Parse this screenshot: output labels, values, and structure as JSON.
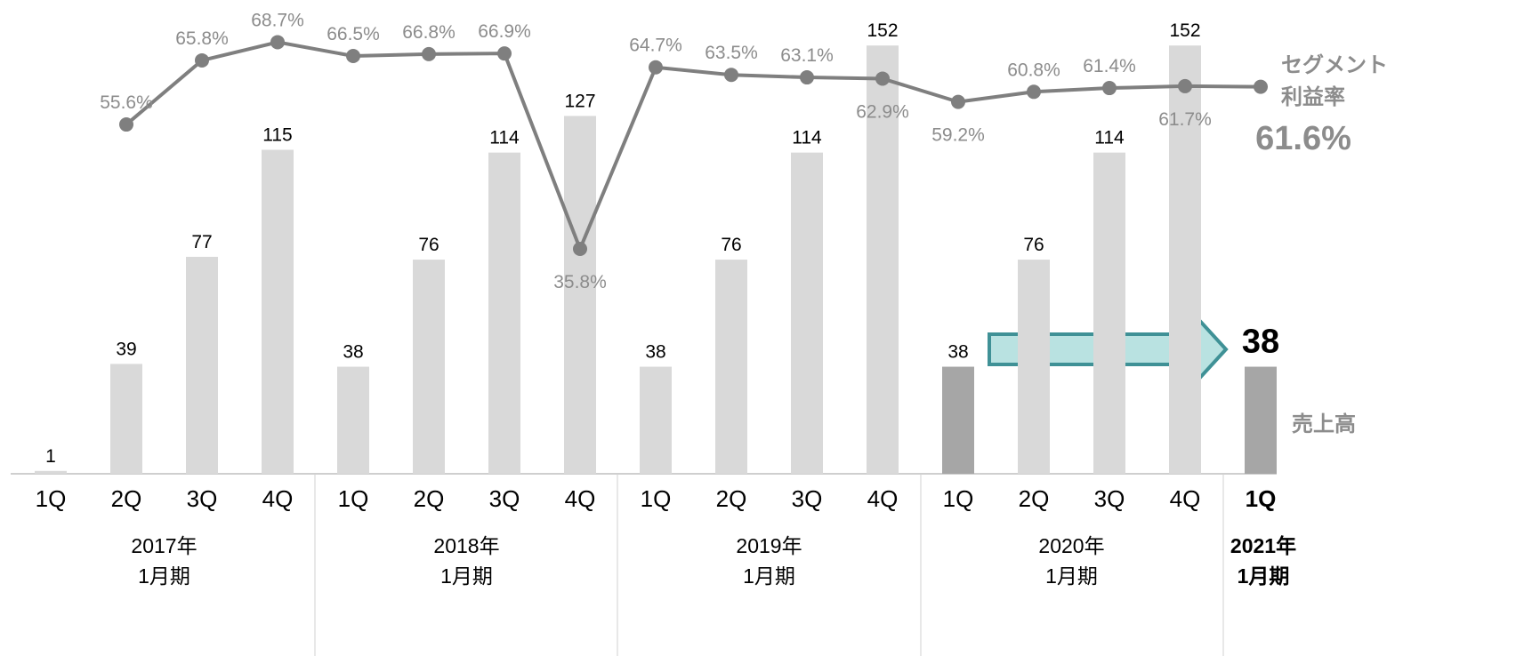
{
  "chart_data": {
    "type": "bar_line",
    "categories": [
      "1Q",
      "2Q",
      "3Q",
      "4Q",
      "1Q",
      "2Q",
      "3Q",
      "4Q",
      "1Q",
      "2Q",
      "3Q",
      "4Q",
      "1Q",
      "2Q",
      "3Q",
      "4Q",
      "1Q"
    ],
    "groups": [
      [
        "2017年",
        "1月期"
      ],
      [
        "2018年",
        "1月期"
      ],
      [
        "2019年",
        "1月期"
      ],
      [
        "2020年",
        "1月期"
      ],
      [
        "2021年",
        "1月期"
      ]
    ],
    "series": [
      {
        "name": "売上高",
        "type": "bar",
        "color": "#d9d9d9",
        "colors": [
          "#d9d9d9",
          "#d9d9d9",
          "#d9d9d9",
          "#d9d9d9",
          "#d9d9d9",
          "#d9d9d9",
          "#d9d9d9",
          "#d9d9d9",
          "#d9d9d9",
          "#d9d9d9",
          "#d9d9d9",
          "#d9d9d9",
          "#a6a6a6",
          "#d9d9d9",
          "#d9d9d9",
          "#d9d9d9",
          "#a6a6a6"
        ],
        "values": [
          1,
          39,
          77,
          115,
          38,
          76,
          114,
          127,
          38,
          76,
          114,
          152,
          38,
          76,
          114,
          152,
          38
        ]
      },
      {
        "name": "セグメント利益率",
        "type": "line",
        "axis": "y2",
        "color": "#7f7f7f",
        "values": [
          null,
          55.6,
          65.8,
          68.7,
          66.5,
          66.8,
          66.9,
          35.8,
          64.7,
          63.5,
          63.1,
          62.9,
          59.2,
          60.8,
          61.4,
          61.7,
          61.6
        ],
        "value_labels": [
          null,
          "55.6%",
          "65.8%",
          "68.7%",
          "66.5%",
          "66.8%",
          "66.9%",
          "35.8%",
          "64.7%",
          "63.5%",
          "63.1%",
          "62.9%",
          "59.2%",
          "60.8%",
          "61.4%",
          "61.7%",
          "61.6%"
        ]
      }
    ],
    "ylim": [
      0,
      165
    ],
    "y2lim": [
      0,
      74
    ]
  }
}
